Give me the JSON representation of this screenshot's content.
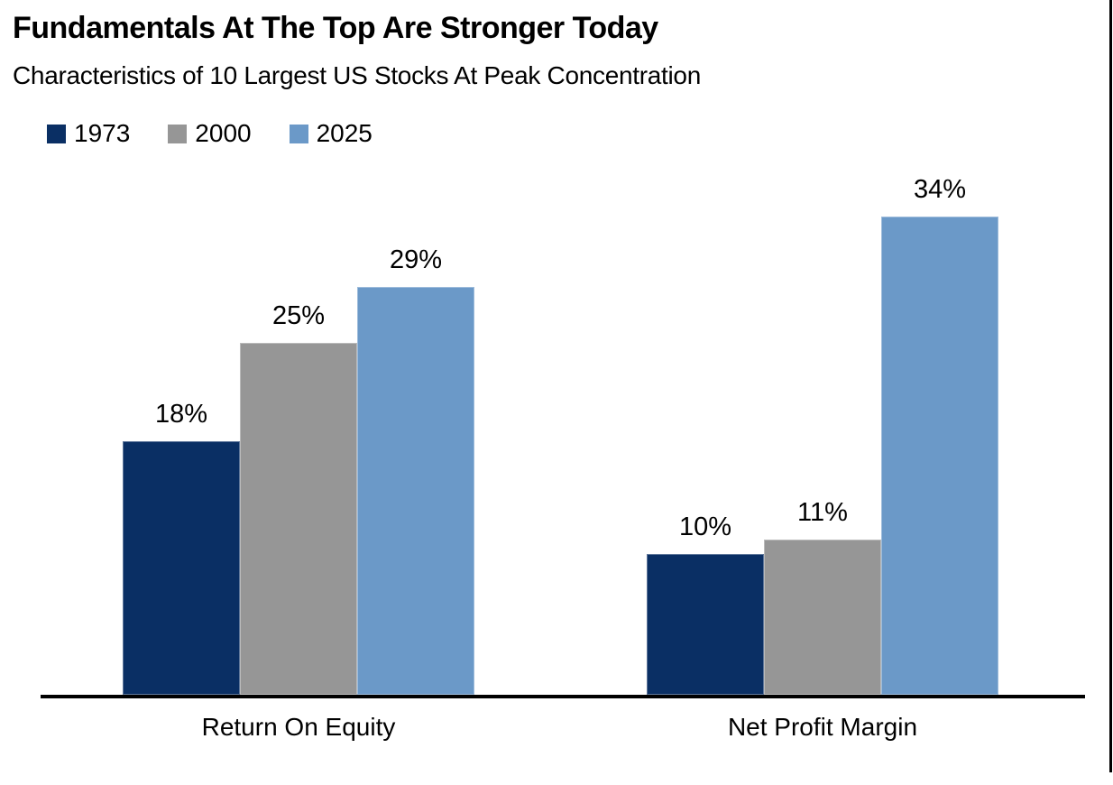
{
  "chart_data": {
    "type": "bar",
    "title": "Fundamentals At The Top Are Stronger Today",
    "subtitle": "Characteristics of 10 Largest US Stocks At Peak Concentration",
    "categories": [
      "Return On Equity",
      "Net Profit Margin"
    ],
    "series": [
      {
        "name": "1973",
        "color": "#0a2f64",
        "values": [
          18,
          10
        ]
      },
      {
        "name": "2000",
        "color": "#969696",
        "values": [
          25,
          11
        ]
      },
      {
        "name": "2025",
        "color": "#6b99c8",
        "values": [
          29,
          34
        ]
      }
    ],
    "unit": "%",
    "ylim": [
      0,
      36
    ],
    "grid": false,
    "y_axis_visible": false,
    "data_labels": true,
    "legend_position": "top-left"
  },
  "colors": {
    "background": "#ffffff",
    "text": "#000000",
    "axis_line": "#000000",
    "frame_border": "#000000"
  }
}
